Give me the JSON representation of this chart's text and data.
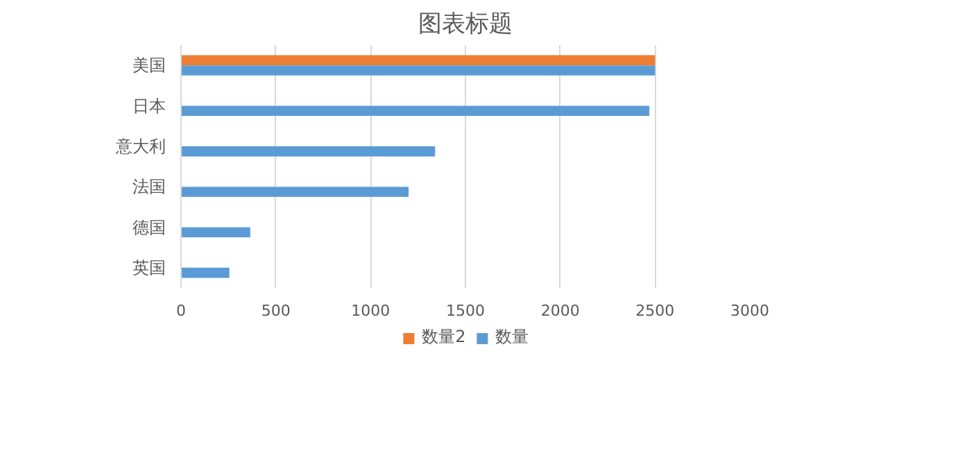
{
  "chart_data": {
    "type": "bar",
    "orientation": "horizontal",
    "title": "图表标题",
    "categories": [
      "美国",
      "日本",
      "意大利",
      "法国",
      "德国",
      "英国"
    ],
    "series": [
      {
        "name": "数量2",
        "color": "#ed7d31",
        "values": [
          2500,
          null,
          null,
          null,
          null,
          null
        ]
      },
      {
        "name": "数量",
        "color": "#5b9bd5",
        "values": [
          2500,
          2470,
          1340,
          1200,
          365,
          255
        ]
      }
    ],
    "xlim": [
      0,
      3000
    ],
    "xticks": [
      0,
      500,
      1000,
      1500,
      2000,
      2500,
      3000
    ],
    "grid": "x",
    "legend": "bottom"
  }
}
